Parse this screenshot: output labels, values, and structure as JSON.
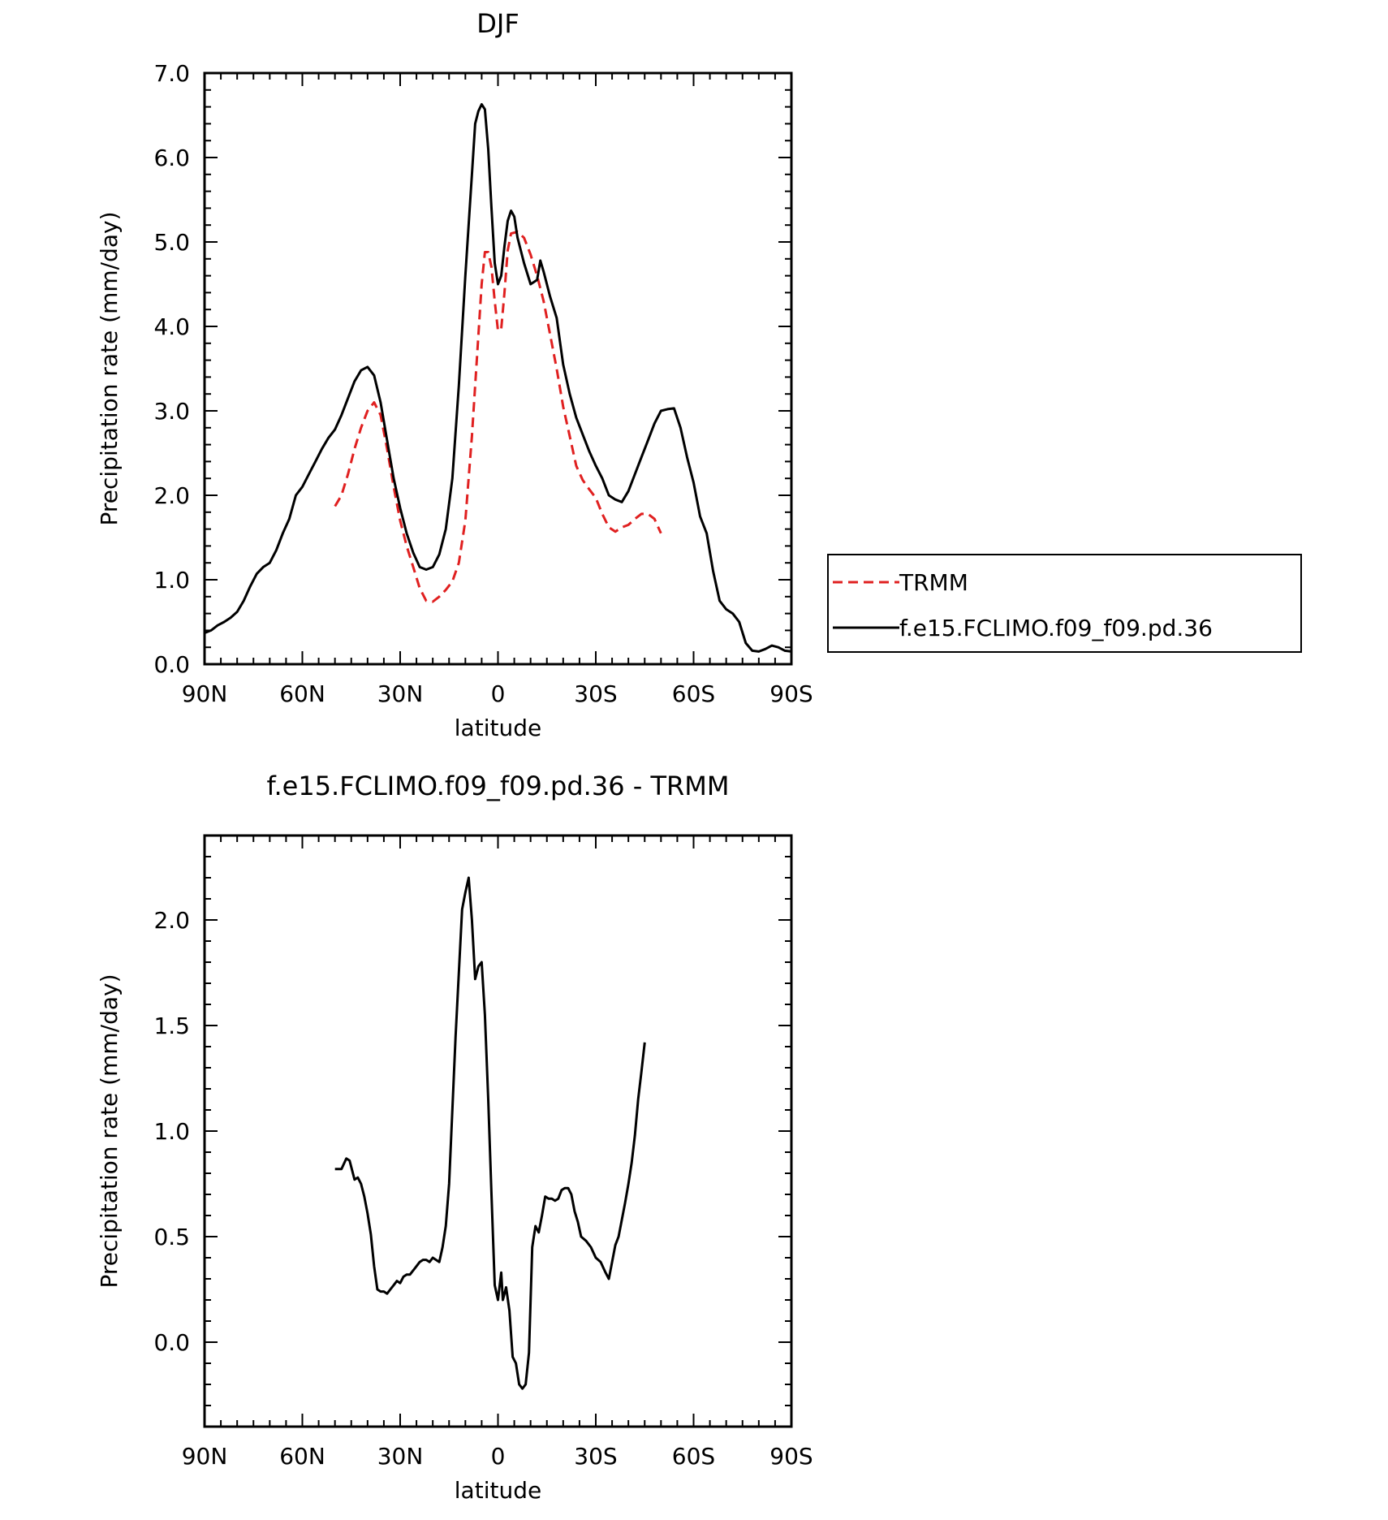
{
  "chart_data": [
    {
      "type": "line",
      "title": "DJF",
      "xlabel": "latitude",
      "ylabel": "Precipitation rate (mm/day)",
      "xlim": [
        90,
        -90
      ],
      "ylim": [
        0,
        7
      ],
      "x_ticks": [
        90,
        60,
        30,
        0,
        -30,
        -60,
        -90
      ],
      "x_tick_labels": [
        "90N",
        "60N",
        "30N",
        "0",
        "30S",
        "60S",
        "90S"
      ],
      "y_ticks": [
        0,
        1,
        2,
        3,
        4,
        5,
        6,
        7
      ],
      "y_tick_labels": [
        "0.0",
        "1.0",
        "2.0",
        "3.0",
        "4.0",
        "5.0",
        "6.0",
        "7.0"
      ],
      "legend": {
        "placement": "right"
      },
      "series": [
        {
          "name": "TRMM",
          "color": "#e02020",
          "dash": "dashed",
          "points": [
            [
              50,
              1.87
            ],
            [
              48,
              2.0
            ],
            [
              46,
              2.25
            ],
            [
              44,
              2.55
            ],
            [
              42,
              2.8
            ],
            [
              40,
              3.0
            ],
            [
              38,
              3.1
            ],
            [
              36,
              2.95
            ],
            [
              34,
              2.55
            ],
            [
              32,
              2.1
            ],
            [
              30,
              1.7
            ],
            [
              28,
              1.4
            ],
            [
              26,
              1.15
            ],
            [
              24,
              0.9
            ],
            [
              22,
              0.75
            ],
            [
              20,
              0.74
            ],
            [
              18,
              0.8
            ],
            [
              16,
              0.88
            ],
            [
              14,
              0.98
            ],
            [
              12,
              1.2
            ],
            [
              10,
              1.7
            ],
            [
              8,
              2.7
            ],
            [
              6,
              3.9
            ],
            [
              5,
              4.5
            ],
            [
              4,
              4.88
            ],
            [
              3,
              4.88
            ],
            [
              2,
              4.7
            ],
            [
              1,
              4.3
            ],
            [
              0,
              3.95
            ],
            [
              -1,
              3.97
            ],
            [
              -2,
              4.4
            ],
            [
              -3,
              4.9
            ],
            [
              -4,
              5.1
            ],
            [
              -6,
              5.12
            ],
            [
              -8,
              5.05
            ],
            [
              -10,
              4.85
            ],
            [
              -12,
              4.6
            ],
            [
              -14,
              4.3
            ],
            [
              -16,
              3.9
            ],
            [
              -18,
              3.5
            ],
            [
              -20,
              3.05
            ],
            [
              -22,
              2.7
            ],
            [
              -24,
              2.35
            ],
            [
              -26,
              2.18
            ],
            [
              -28,
              2.07
            ],
            [
              -30,
              1.97
            ],
            [
              -32,
              1.78
            ],
            [
              -34,
              1.62
            ],
            [
              -36,
              1.57
            ],
            [
              -38,
              1.62
            ],
            [
              -40,
              1.65
            ],
            [
              -42,
              1.72
            ],
            [
              -44,
              1.78
            ],
            [
              -46,
              1.78
            ],
            [
              -48,
              1.72
            ],
            [
              -50,
              1.55
            ]
          ]
        },
        {
          "name": "f.e15.FCLIMO.f09_f09.pd.36",
          "color": "#000000",
          "dash": "solid",
          "points": [
            [
              90,
              0.37
            ],
            [
              88,
              0.4
            ],
            [
              86,
              0.46
            ],
            [
              84,
              0.5
            ],
            [
              82,
              0.55
            ],
            [
              80,
              0.62
            ],
            [
              78,
              0.75
            ],
            [
              76,
              0.92
            ],
            [
              74,
              1.07
            ],
            [
              72,
              1.15
            ],
            [
              70,
              1.2
            ],
            [
              68,
              1.35
            ],
            [
              66,
              1.55
            ],
            [
              64,
              1.72
            ],
            [
              62,
              2.0
            ],
            [
              60,
              2.1
            ],
            [
              58,
              2.25
            ],
            [
              56,
              2.4
            ],
            [
              54,
              2.55
            ],
            [
              52,
              2.68
            ],
            [
              50,
              2.78
            ],
            [
              48,
              2.95
            ],
            [
              46,
              3.15
            ],
            [
              44,
              3.35
            ],
            [
              42,
              3.48
            ],
            [
              40,
              3.52
            ],
            [
              38,
              3.42
            ],
            [
              36,
              3.1
            ],
            [
              34,
              2.65
            ],
            [
              32,
              2.2
            ],
            [
              30,
              1.85
            ],
            [
              28,
              1.55
            ],
            [
              26,
              1.32
            ],
            [
              24,
              1.15
            ],
            [
              22,
              1.12
            ],
            [
              20,
              1.15
            ],
            [
              18,
              1.3
            ],
            [
              16,
              1.6
            ],
            [
              14,
              2.2
            ],
            [
              12,
              3.3
            ],
            [
              10,
              4.6
            ],
            [
              8,
              5.8
            ],
            [
              7,
              6.4
            ],
            [
              6,
              6.55
            ],
            [
              5,
              6.63
            ],
            [
              4,
              6.57
            ],
            [
              3,
              6.1
            ],
            [
              2,
              5.4
            ],
            [
              1,
              4.75
            ],
            [
              0,
              4.5
            ],
            [
              -1,
              4.6
            ],
            [
              -2,
              4.95
            ],
            [
              -3,
              5.25
            ],
            [
              -4,
              5.37
            ],
            [
              -5,
              5.3
            ],
            [
              -6,
              5.05
            ],
            [
              -8,
              4.75
            ],
            [
              -10,
              4.5
            ],
            [
              -12,
              4.55
            ],
            [
              -13,
              4.78
            ],
            [
              -14,
              4.65
            ],
            [
              -16,
              4.35
            ],
            [
              -18,
              4.1
            ],
            [
              -20,
              3.55
            ],
            [
              -22,
              3.2
            ],
            [
              -24,
              2.92
            ],
            [
              -26,
              2.72
            ],
            [
              -28,
              2.52
            ],
            [
              -30,
              2.35
            ],
            [
              -32,
              2.2
            ],
            [
              -34,
              2.0
            ],
            [
              -36,
              1.95
            ],
            [
              -38,
              1.92
            ],
            [
              -40,
              2.05
            ],
            [
              -42,
              2.25
            ],
            [
              -44,
              2.45
            ],
            [
              -46,
              2.65
            ],
            [
              -48,
              2.85
            ],
            [
              -50,
              3.0
            ],
            [
              -52,
              3.02
            ],
            [
              -54,
              3.03
            ],
            [
              -56,
              2.8
            ],
            [
              -58,
              2.45
            ],
            [
              -60,
              2.15
            ],
            [
              -62,
              1.75
            ],
            [
              -64,
              1.55
            ],
            [
              -66,
              1.1
            ],
            [
              -68,
              0.75
            ],
            [
              -70,
              0.65
            ],
            [
              -72,
              0.6
            ],
            [
              -74,
              0.5
            ],
            [
              -76,
              0.25
            ],
            [
              -78,
              0.16
            ],
            [
              -80,
              0.15
            ],
            [
              -82,
              0.18
            ],
            [
              -84,
              0.22
            ],
            [
              -86,
              0.2
            ],
            [
              -88,
              0.16
            ],
            [
              -90,
              0.15
            ]
          ]
        }
      ]
    },
    {
      "type": "line",
      "title": "f.e15.FCLIMO.f09_f09.pd.36 - TRMM",
      "xlabel": "latitude",
      "ylabel": "Precipitation rate (mm/day)",
      "xlim": [
        90,
        -90
      ],
      "ylim": [
        -0.4,
        2.4
      ],
      "x_ticks": [
        90,
        60,
        30,
        0,
        -30,
        -60,
        -90
      ],
      "x_tick_labels": [
        "90N",
        "60N",
        "30N",
        "0",
        "30S",
        "60S",
        "90S"
      ],
      "y_ticks": [
        0.0,
        0.5,
        1.0,
        1.5,
        2.0
      ],
      "y_tick_labels": [
        "0.0",
        "0.5",
        "1.0",
        "1.5",
        "2.0"
      ],
      "series": [
        {
          "color": "#000000",
          "dash": "solid",
          "points": [
            [
              50,
              0.82
            ],
            [
              48,
              0.82
            ],
            [
              46.5,
              0.87
            ],
            [
              45.5,
              0.86
            ],
            [
              44,
              0.77
            ],
            [
              43,
              0.78
            ],
            [
              42,
              0.75
            ],
            [
              41,
              0.69
            ],
            [
              40,
              0.61
            ],
            [
              39,
              0.51
            ],
            [
              38,
              0.36
            ],
            [
              37,
              0.25
            ],
            [
              36,
              0.24
            ],
            [
              35,
              0.24
            ],
            [
              34,
              0.23
            ],
            [
              33,
              0.25
            ],
            [
              32,
              0.27
            ],
            [
              31,
              0.29
            ],
            [
              30,
              0.28
            ],
            [
              29,
              0.31
            ],
            [
              28,
              0.32
            ],
            [
              27,
              0.32
            ],
            [
              26,
              0.34
            ],
            [
              25,
              0.36
            ],
            [
              24,
              0.38
            ],
            [
              23,
              0.39
            ],
            [
              22,
              0.39
            ],
            [
              21,
              0.38
            ],
            [
              20,
              0.4
            ],
            [
              19,
              0.39
            ],
            [
              18,
              0.38
            ],
            [
              17,
              0.45
            ],
            [
              16,
              0.55
            ],
            [
              15,
              0.75
            ],
            [
              14,
              1.1
            ],
            [
              13,
              1.45
            ],
            [
              12,
              1.75
            ],
            [
              11,
              2.05
            ],
            [
              10,
              2.13
            ],
            [
              9,
              2.2
            ],
            [
              8,
              2.0
            ],
            [
              7,
              1.72
            ],
            [
              6,
              1.78
            ],
            [
              5,
              1.8
            ],
            [
              4,
              1.55
            ],
            [
              3,
              1.15
            ],
            [
              2,
              0.7
            ],
            [
              1,
              0.27
            ],
            [
              0,
              0.2
            ],
            [
              -1,
              0.33
            ],
            [
              -1.5,
              0.2
            ],
            [
              -2.5,
              0.26
            ],
            [
              -3.5,
              0.15
            ],
            [
              -4.5,
              -0.07
            ],
            [
              -5.5,
              -0.1
            ],
            [
              -6.5,
              -0.2
            ],
            [
              -7.5,
              -0.22
            ],
            [
              -8.5,
              -0.2
            ],
            [
              -9.5,
              -0.05
            ],
            [
              -10.5,
              0.45
            ],
            [
              -11.5,
              0.55
            ],
            [
              -12.5,
              0.52
            ],
            [
              -13.5,
              0.6
            ],
            [
              -14.5,
              0.69
            ],
            [
              -15.5,
              0.68
            ],
            [
              -16.5,
              0.68
            ],
            [
              -17.5,
              0.67
            ],
            [
              -18.5,
              0.68
            ],
            [
              -19.5,
              0.72
            ],
            [
              -20.5,
              0.73
            ],
            [
              -21.5,
              0.73
            ],
            [
              -22.5,
              0.7
            ],
            [
              -23.5,
              0.62
            ],
            [
              -24.5,
              0.57
            ],
            [
              -25.5,
              0.5
            ],
            [
              -27,
              0.48
            ],
            [
              -28.5,
              0.45
            ],
            [
              -30,
              0.4
            ],
            [
              -31.5,
              0.38
            ],
            [
              -33,
              0.33
            ],
            [
              -34,
              0.3
            ],
            [
              -35,
              0.38
            ],
            [
              -36,
              0.46
            ],
            [
              -37,
              0.5
            ],
            [
              -38,
              0.58
            ],
            [
              -39,
              0.66
            ],
            [
              -40,
              0.75
            ],
            [
              -41,
              0.85
            ],
            [
              -42,
              0.98
            ],
            [
              -43,
              1.15
            ],
            [
              -44,
              1.28
            ],
            [
              -45,
              1.42
            ]
          ]
        }
      ]
    }
  ]
}
